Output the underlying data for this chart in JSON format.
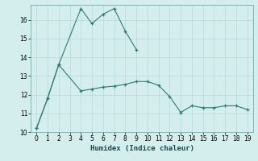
{
  "xlabel": "Humidex (Indice chaleur)",
  "x": [
    0,
    1,
    2,
    3,
    4,
    5,
    6,
    7,
    8,
    9,
    10,
    11,
    12,
    13,
    14,
    15,
    16,
    17,
    18,
    19
  ],
  "line1_x": [
    0,
    1,
    2,
    4,
    5,
    6,
    7,
    8,
    9
  ],
  "line1_y": [
    10.2,
    11.8,
    13.6,
    16.6,
    15.8,
    16.3,
    16.6,
    15.4,
    14.4
  ],
  "line2_x": [
    0,
    1,
    2,
    4,
    5,
    6,
    7,
    8,
    9,
    10,
    11,
    12,
    13,
    14,
    15,
    16,
    17,
    18,
    19
  ],
  "line2_y": [
    10.2,
    11.8,
    13.6,
    12.2,
    12.3,
    12.4,
    12.45,
    12.55,
    12.7,
    12.7,
    12.5,
    11.9,
    11.05,
    11.4,
    11.3,
    11.3,
    11.4,
    11.4,
    11.2
  ],
  "line_color": "#2d7d6f",
  "bg_color": "#d4eded",
  "grid_color": "#b8d8d8",
  "ylim": [
    10,
    16.8
  ],
  "xlim": [
    -0.5,
    19.5
  ],
  "yticks": [
    10,
    11,
    12,
    13,
    14,
    15,
    16
  ],
  "xticks": [
    0,
    1,
    2,
    3,
    4,
    5,
    6,
    7,
    8,
    9,
    10,
    11,
    12,
    13,
    14,
    15,
    16,
    17,
    18,
    19
  ],
  "tick_fontsize": 5.5,
  "xlabel_fontsize": 6.5
}
